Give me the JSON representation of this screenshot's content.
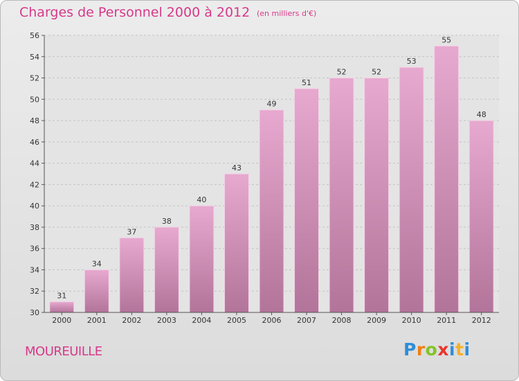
{
  "title": "Charges de Personnel 2000 à 2012",
  "subtitle": "(en milliers d'€)",
  "place_name": "MOUREUILLE",
  "logo_text": "Proxiti",
  "colors": {
    "title": "#d7398a",
    "bar_light": "#e7a9cf",
    "bar_dark": "#b3749a",
    "background": "#e3e3e3"
  },
  "chart_data": {
    "type": "bar",
    "title": "Charges de Personnel 2000 à 2012",
    "subtitle": "(en milliers d'€)",
    "xlabel": "",
    "ylabel": "",
    "categories": [
      "2000",
      "2001",
      "2002",
      "2003",
      "2004",
      "2005",
      "2006",
      "2007",
      "2008",
      "2009",
      "2010",
      "2011",
      "2012"
    ],
    "values": [
      31,
      34,
      37,
      38,
      40,
      43,
      49,
      51,
      52,
      52,
      53,
      55,
      48
    ],
    "ylim": [
      30,
      56
    ],
    "yticks": [
      30,
      32,
      34,
      36,
      38,
      40,
      42,
      44,
      46,
      48,
      50,
      52,
      54,
      56
    ],
    "grid": true,
    "data_labels": true,
    "legend": "none"
  }
}
